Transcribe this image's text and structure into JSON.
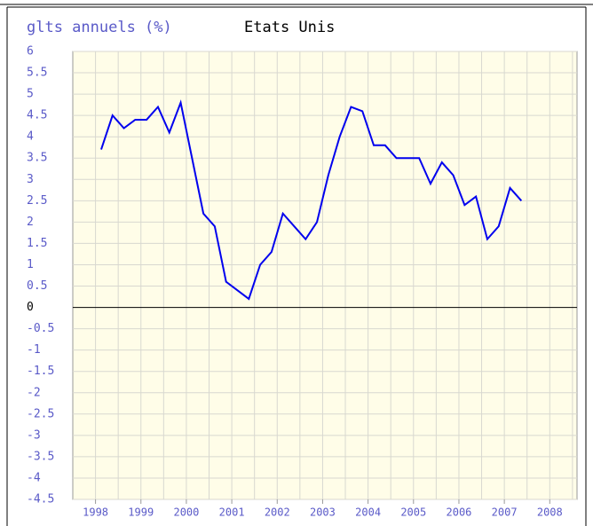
{
  "chart_data": {
    "type": "line",
    "title": "glts annuels (%)",
    "subtitle": "Etats Unis",
    "x": [
      1998.625,
      1998.875,
      1999.125,
      1999.375,
      1999.625,
      1999.875,
      2000.125,
      2000.375,
      2000.625,
      2000.875,
      2001.125,
      2001.375,
      2001.625,
      2001.875,
      2002.125,
      2002.375,
      2002.625,
      2002.875,
      2003.125,
      2003.375,
      2003.625,
      2003.875,
      2004.125,
      2004.375,
      2004.625,
      2004.875,
      2005.125,
      2005.375,
      2005.625,
      2005.875,
      2006.125,
      2006.375,
      2006.625,
      2006.875,
      2007.125,
      2007.375,
      2007.625,
      2007.875
    ],
    "series": [
      {
        "name": "Etats Unis",
        "color": "#0000ee",
        "values": [
          3.7,
          4.5,
          4.2,
          4.4,
          4.4,
          4.7,
          4.1,
          4.8,
          3.5,
          2.2,
          1.9,
          0.6,
          0.4,
          0.2,
          1.0,
          1.3,
          2.2,
          1.9,
          1.6,
          2.0,
          3.1,
          4.0,
          4.7,
          4.6,
          3.8,
          3.8,
          3.5,
          3.5,
          3.5,
          2.9,
          3.4,
          3.1,
          2.4,
          2.6,
          1.6,
          1.9,
          2.8,
          2.5
        ]
      }
    ],
    "xlim": [
      1998,
      2009.1
    ],
    "xticks": [
      {
        "value": 1998.5,
        "label": "1998"
      },
      {
        "value": 1999.5,
        "label": "1999"
      },
      {
        "value": 2000.5,
        "label": "2000"
      },
      {
        "value": 2001.5,
        "label": "2001"
      },
      {
        "value": 2002.5,
        "label": "2002"
      },
      {
        "value": 2003.5,
        "label": "2003"
      },
      {
        "value": 2004.5,
        "label": "2004"
      },
      {
        "value": 2005.5,
        "label": "2005"
      },
      {
        "value": 2006.5,
        "label": "2006"
      },
      {
        "value": 2007.5,
        "label": "2007"
      },
      {
        "value": 2008.5,
        "label": "2008"
      }
    ],
    "xgrid": [
      1998.5,
      1999,
      1999.5,
      2000,
      2000.5,
      2001,
      2001.5,
      2002,
      2002.5,
      2003,
      2003.5,
      2004,
      2004.5,
      2005,
      2005.5,
      2006,
      2006.5,
      2007,
      2007.5,
      2008,
      2008.5,
      2009
    ],
    "ylim": [
      -4.5,
      6
    ],
    "yticks": [
      -4.5,
      -4,
      -3.5,
      -3,
      -2.5,
      -2,
      -1.5,
      -1,
      -0.5,
      0,
      0.5,
      1,
      1.5,
      2,
      2.5,
      3,
      3.5,
      4,
      4.5,
      5,
      5.5,
      6
    ],
    "grid": true
  }
}
